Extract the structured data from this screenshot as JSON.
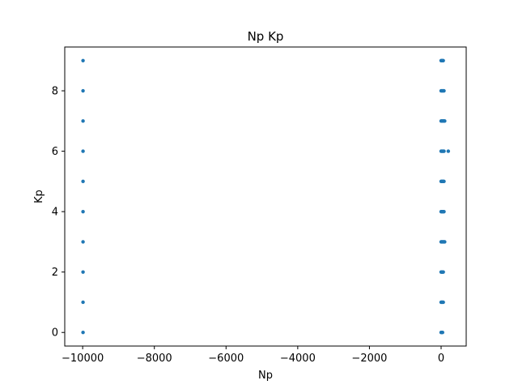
{
  "chart_data": {
    "type": "scatter",
    "title": "Np Kp",
    "xlabel": "Np",
    "ylabel": "Kp",
    "xlim": [
      -10500,
      700
    ],
    "ylim": [
      -0.45,
      9.45
    ],
    "xticks": [
      -10000,
      -8000,
      -6000,
      -4000,
      -2000,
      0
    ],
    "xtick_labels": [
      "−10000",
      "−8000",
      "−6000",
      "−4000",
      "−2000",
      "0"
    ],
    "yticks": [
      0,
      2,
      4,
      6,
      8
    ],
    "ytick_labels": [
      "0",
      "2",
      "4",
      "6",
      "8"
    ],
    "grid": false,
    "series": [
      {
        "color": "#1f77b4",
        "points": [
          [
            -9990,
            0
          ],
          [
            -9990,
            1
          ],
          [
            -9990,
            2
          ],
          [
            -9990,
            3
          ],
          [
            -9990,
            4
          ],
          [
            -9990,
            5
          ],
          [
            -9990,
            6
          ],
          [
            -9990,
            7
          ],
          [
            -9990,
            8
          ],
          [
            -9990,
            9
          ],
          [
            0,
            0
          ],
          [
            20,
            0
          ],
          [
            40,
            0
          ],
          [
            0,
            1
          ],
          [
            20,
            1
          ],
          [
            40,
            1
          ],
          [
            60,
            1
          ],
          [
            0,
            2
          ],
          [
            20,
            2
          ],
          [
            40,
            2
          ],
          [
            60,
            2
          ],
          [
            0,
            3
          ],
          [
            20,
            3
          ],
          [
            40,
            3
          ],
          [
            60,
            3
          ],
          [
            80,
            3
          ],
          [
            100,
            3
          ],
          [
            0,
            4
          ],
          [
            20,
            4
          ],
          [
            40,
            4
          ],
          [
            60,
            4
          ],
          [
            80,
            4
          ],
          [
            0,
            5
          ],
          [
            20,
            5
          ],
          [
            40,
            5
          ],
          [
            60,
            5
          ],
          [
            80,
            5
          ],
          [
            0,
            6
          ],
          [
            20,
            6
          ],
          [
            40,
            6
          ],
          [
            60,
            6
          ],
          [
            80,
            6
          ],
          [
            200,
            6
          ],
          [
            0,
            7
          ],
          [
            20,
            7
          ],
          [
            40,
            7
          ],
          [
            60,
            7
          ],
          [
            80,
            7
          ],
          [
            100,
            7
          ],
          [
            0,
            8
          ],
          [
            20,
            8
          ],
          [
            40,
            8
          ],
          [
            60,
            8
          ],
          [
            80,
            8
          ],
          [
            0,
            9
          ],
          [
            20,
            9
          ],
          [
            40,
            9
          ],
          [
            60,
            9
          ]
        ]
      }
    ]
  }
}
